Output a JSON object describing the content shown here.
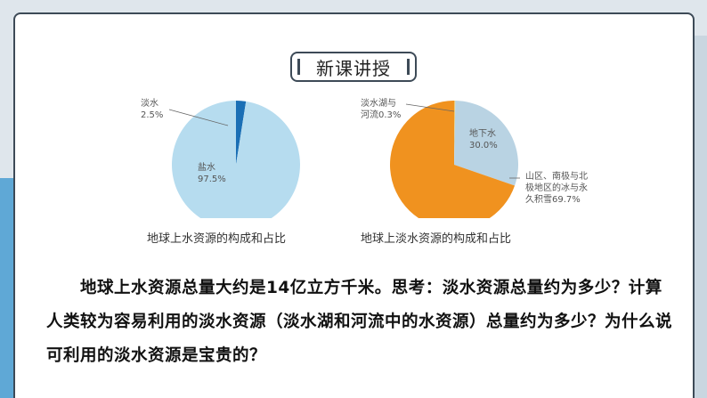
{
  "slide": {
    "title": "新课讲授",
    "paragraph": "地球上水资源总量大约是14亿立方千米。思考：淡水资源总量约为多少？计算人类较为容易利用的淡水资源（淡水湖和河流中的水资源）总量约为多少？为什么说可利用的淡水资源是宝贵的？"
  },
  "colors": {
    "background": "#dfe6ec",
    "card": "#ffffff",
    "border": "#3d4a57",
    "salt_water": "#b6dcef",
    "fresh_water": "#1b6fb5",
    "orange": "#f0921f",
    "groundwater": "#b9d3e3",
    "lake": "#e8c97a"
  },
  "chart_data": [
    {
      "type": "pie",
      "caption": "地球上水资源的构成和占比",
      "slices": [
        {
          "name": "淡水",
          "value_label": "2.5%",
          "value": 2.5
        },
        {
          "name": "盐水",
          "value_label": "97.5%",
          "value": 97.5
        }
      ]
    },
    {
      "type": "pie",
      "caption": "地球上淡水资源的构成和占比",
      "slices": [
        {
          "name": "淡水湖与河流",
          "name_line1": "淡水湖与",
          "name_line2": "河流0.3%",
          "value": 0.3
        },
        {
          "name": "地下水",
          "value_label": "30.0%",
          "value": 30.0
        },
        {
          "name": "山区、南极与北极地区的冰与永久积雪",
          "line1": "山区、南极与北",
          "line2": "极地区的冰与永",
          "line3": "久积雪69.7%",
          "value": 69.7
        }
      ]
    }
  ]
}
